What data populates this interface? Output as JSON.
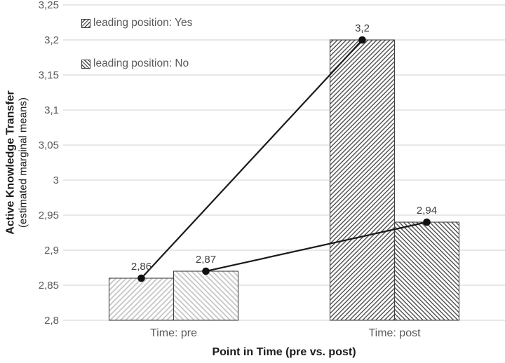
{
  "colors": {
    "background": "#ffffff",
    "grid": "#d9d9d9",
    "axis_text": "#595959",
    "data_label": "#404040",
    "title_text": "#1a1a1a",
    "bar_border": "#404040",
    "hatch_light": "#c3c3c3",
    "hatch_dark": "#474747",
    "line": "#1a1a1a",
    "marker": "#111111"
  },
  "chart_data": {
    "type": "bar",
    "subtype": "grouped hatched bars with overlaid line and markers",
    "categories": [
      "Time: pre",
      "Time: post"
    ],
    "series": [
      {
        "name": "leading position: Yes",
        "values": [
          2.86,
          3.2
        ],
        "point_labels": [
          "2,86",
          "3,2"
        ],
        "hatch": "fwd"
      },
      {
        "name": "leading position: No",
        "values": [
          2.87,
          2.94
        ],
        "point_labels": [
          "2,87",
          "2,94"
        ],
        "hatch": "back"
      }
    ],
    "bar_shade_by_category": [
      "light",
      "dark"
    ],
    "xlabel": "Point in Time (pre vs. post)",
    "ylabel_line1": "Active Knowledge Transfer",
    "ylabel_line2": "(estimated marginal means)",
    "ylim": [
      2.8,
      3.25
    ],
    "ytick_values": [
      3.25,
      3.2,
      3.15,
      3.1,
      3.05,
      3.0,
      2.95,
      2.9,
      2.85,
      2.8
    ],
    "ytick_labels": [
      "3,25",
      "3,2",
      "3,15",
      "3,1",
      "3,05",
      "3",
      "2,95",
      "2,9",
      "2,85",
      "2,8"
    ],
    "grid": true,
    "legend_position": "inside top-left"
  }
}
